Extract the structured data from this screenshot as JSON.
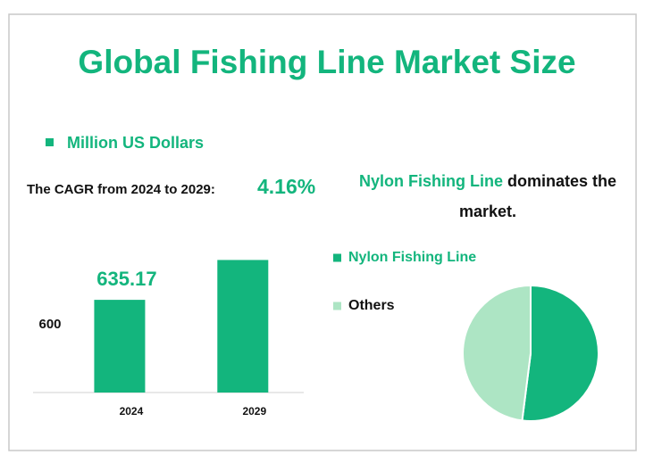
{
  "title": "Global Fishing Line Market Size",
  "cagr": {
    "label": "The CAGR from 2024 to 2029:",
    "value": "4.16%"
  },
  "headline": {
    "highlight": "Nylon Fishing Line",
    "rest": "dominates the market."
  },
  "chart_data": [
    {
      "type": "bar",
      "categories": [
        "2024",
        "2029"
      ],
      "series": [
        {
          "name": "Million US Dollars",
          "color": "#13b57d",
          "values": [
            635.17,
            779.3
          ],
          "value_labels": [
            "635.17",
            null
          ]
        }
      ],
      "ylim": [
        300,
        800
      ],
      "yticks": [
        600
      ],
      "grid": false,
      "legend": "top-left"
    },
    {
      "type": "pie",
      "categories": [
        "Nylon Fishing Line",
        "Others"
      ],
      "values": [
        52,
        48
      ],
      "colors": [
        "#13b57d",
        "#ade5c4"
      ],
      "legend": "left"
    }
  ]
}
